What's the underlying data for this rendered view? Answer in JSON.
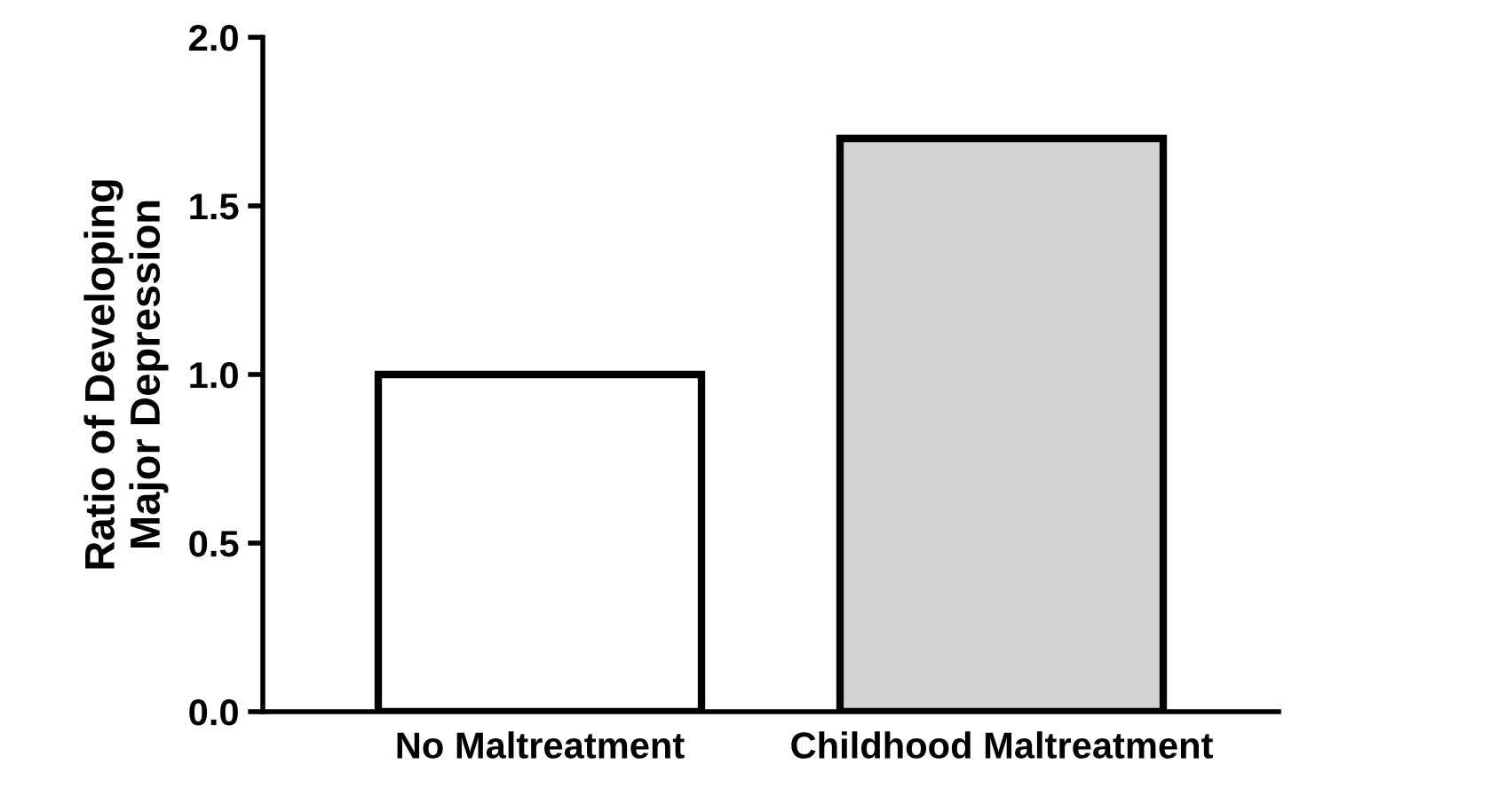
{
  "chart_data": {
    "type": "bar",
    "ylabel": "Ratio of Developing\nMajor Depression",
    "categories": [
      "No Maltreatment",
      "Childhood Maltreatment"
    ],
    "values": [
      1.0,
      1.7
    ],
    "colors": [
      "#ffffff",
      "#d3d3d3"
    ],
    "ylim": [
      0,
      2.0
    ],
    "yticks": [
      {
        "value": 0,
        "label": "0.0"
      },
      {
        "value": 0.5,
        "label": "0.5"
      },
      {
        "value": 1.0,
        "label": "1.0"
      },
      {
        "value": 1.5,
        "label": "1.5"
      },
      {
        "value": 2.0,
        "label": "2.0"
      }
    ],
    "grid": false,
    "legend": false
  }
}
